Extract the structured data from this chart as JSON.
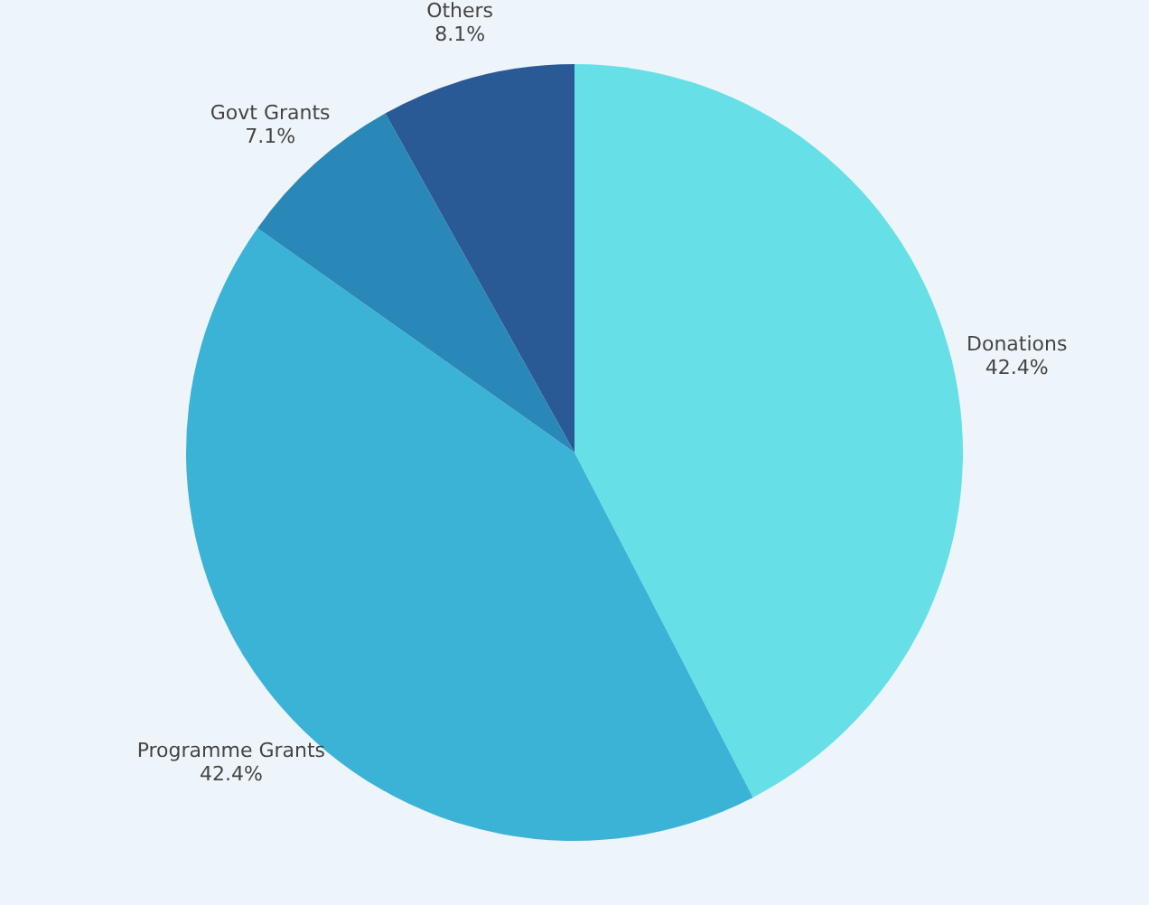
{
  "chart_data": {
    "type": "pie",
    "categories": [
      "Donations",
      "Programme Grants",
      "Govt Grants",
      "Others"
    ],
    "values": [
      42.4,
      42.4,
      7.1,
      8.1
    ],
    "value_labels": [
      "42.4%",
      "42.4%",
      "7.1%",
      "8.1%"
    ],
    "colors": [
      "#66e0e6",
      "#3ab3d6",
      "#2a88b8",
      "#2a5a96"
    ],
    "legend": false
  }
}
